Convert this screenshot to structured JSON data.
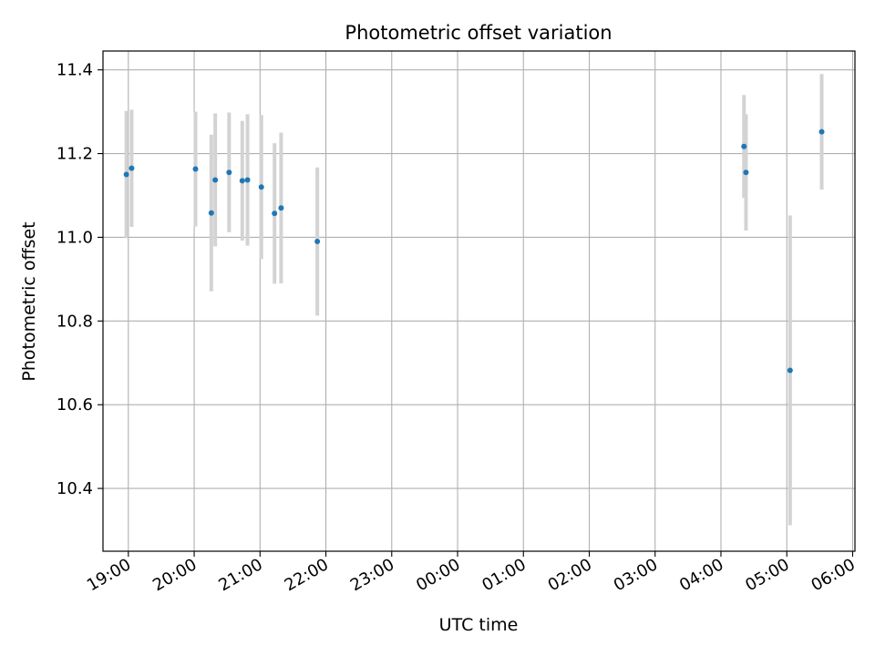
{
  "chart_data": {
    "type": "scatter",
    "title": "Photometric offset variation",
    "xlabel": "UTC time",
    "ylabel": "Photometric offset",
    "x_unit": "hours of UTC time (times after midnight written as 24+h)",
    "xlim": [
      18.615,
      30.035
    ],
    "ylim": [
      10.25,
      11.445
    ],
    "grid": true,
    "x_ticks": [
      {
        "value": 19,
        "label": "19:00"
      },
      {
        "value": 20,
        "label": "20:00"
      },
      {
        "value": 21,
        "label": "21:00"
      },
      {
        "value": 22,
        "label": "22:00"
      },
      {
        "value": 23,
        "label": "23:00"
      },
      {
        "value": 24,
        "label": "00:00"
      },
      {
        "value": 25,
        "label": "01:00"
      },
      {
        "value": 26,
        "label": "02:00"
      },
      {
        "value": 27,
        "label": "03:00"
      },
      {
        "value": 28,
        "label": "04:00"
      },
      {
        "value": 29,
        "label": "05:00"
      },
      {
        "value": 30,
        "label": "06:00"
      }
    ],
    "y_ticks": [
      {
        "value": 10.4,
        "label": "10.4"
      },
      {
        "value": 10.6,
        "label": "10.6"
      },
      {
        "value": 10.8,
        "label": "10.8"
      },
      {
        "value": 11.0,
        "label": "11.0"
      },
      {
        "value": 11.2,
        "label": "11.2"
      },
      {
        "value": 11.4,
        "label": "11.4"
      }
    ],
    "colors": {
      "points": "#1f77b4",
      "errorbars": "#d3d3d3",
      "grid": "#b0b0b0"
    },
    "series": [
      {
        "points": [
          {
            "x": 18.97,
            "y": 11.15,
            "err": 0.152
          },
          {
            "x": 19.05,
            "y": 11.165,
            "err": 0.14
          },
          {
            "x": 20.02,
            "y": 11.163,
            "err": 0.137
          },
          {
            "x": 20.26,
            "y": 11.058,
            "err": 0.187
          },
          {
            "x": 20.32,
            "y": 11.137,
            "err": 0.159
          },
          {
            "x": 20.53,
            "y": 11.155,
            "err": 0.143
          },
          {
            "x": 20.73,
            "y": 11.135,
            "err": 0.143
          },
          {
            "x": 20.81,
            "y": 11.137,
            "err": 0.157
          },
          {
            "x": 21.02,
            "y": 11.12,
            "err": 0.172
          },
          {
            "x": 21.22,
            "y": 11.057,
            "err": 0.168
          },
          {
            "x": 21.32,
            "y": 11.07,
            "err": 0.18
          },
          {
            "x": 21.87,
            "y": 10.99,
            "err": 0.177
          },
          {
            "x": 28.35,
            "y": 11.217,
            "err": 0.123
          },
          {
            "x": 28.38,
            "y": 11.155,
            "err": 0.139
          },
          {
            "x": 29.05,
            "y": 10.682,
            "err": 0.37
          },
          {
            "x": 29.53,
            "y": 11.252,
            "err": 0.138
          }
        ]
      }
    ]
  }
}
